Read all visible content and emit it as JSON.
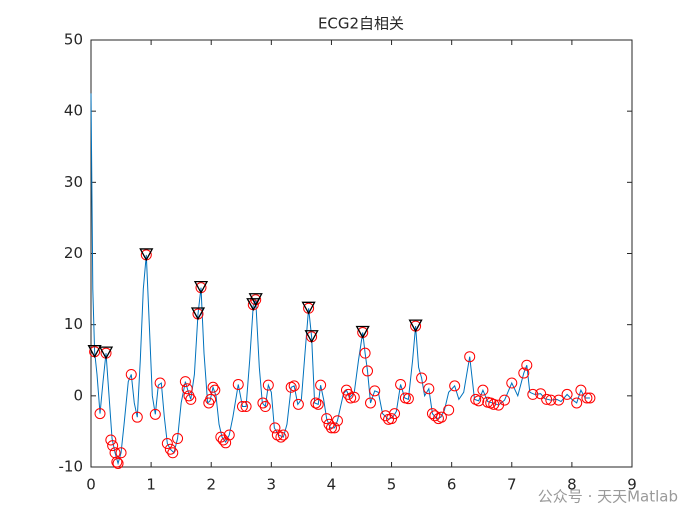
{
  "chart_data": {
    "type": "line",
    "title": "ECG2自相关",
    "xlim": [
      0,
      9
    ],
    "ylim": [
      -10,
      50
    ],
    "xticks": [
      0,
      1,
      2,
      3,
      4,
      5,
      6,
      7,
      8,
      9
    ],
    "yticks": [
      -10,
      0,
      10,
      20,
      30,
      40,
      50
    ],
    "grid": false,
    "series": [
      {
        "color": "#0072bd",
        "marker": "none",
        "x": [
          0,
          0.03,
          0.06,
          0.1,
          0.15,
          0.2,
          0.25,
          0.3,
          0.35,
          0.4,
          0.45,
          0.5,
          0.55,
          0.62,
          0.67,
          0.72,
          0.77,
          0.82,
          0.87,
          0.92,
          0.97,
          1.02,
          1.07,
          1.12,
          1.17,
          1.22,
          1.27,
          1.32,
          1.38,
          1.44,
          1.5,
          1.57,
          1.62,
          1.66,
          1.72,
          1.78,
          1.83,
          1.88,
          1.94,
          1.98,
          2.03,
          2.08,
          2.13,
          2.18,
          2.24,
          2.3,
          2.36,
          2.45,
          2.52,
          2.58,
          2.64,
          2.7,
          2.74,
          2.8,
          2.85,
          2.9,
          2.95,
          3.0,
          3.05,
          3.12,
          3.2,
          3.26,
          3.33,
          3.38,
          3.44,
          3.5,
          3.56,
          3.62,
          3.67,
          3.72,
          3.78,
          3.82,
          3.87,
          3.92,
          3.98,
          4.05,
          4.1,
          4.2,
          4.25,
          4.3,
          4.38,
          4.45,
          4.52,
          4.56,
          4.6,
          4.65,
          4.72,
          4.78,
          4.85,
          4.95,
          5.02,
          5.08,
          5.15,
          5.22,
          5.28,
          5.35,
          5.4,
          5.45,
          5.5,
          5.55,
          5.62,
          5.68,
          5.75,
          5.82,
          5.88,
          5.95,
          6.05,
          6.12,
          6.2,
          6.3,
          6.38,
          6.45,
          6.52,
          6.6,
          6.68,
          6.78,
          6.88,
          7.0,
          7.1,
          7.2,
          7.25,
          7.3,
          7.38,
          7.48,
          7.55,
          7.65,
          7.75,
          7.82,
          7.92,
          8.0,
          8.08,
          8.15,
          8.22,
          8.3
        ],
        "values": [
          42.5,
          15,
          6.2,
          3,
          -2.5,
          2,
          6,
          0,
          -6,
          -8,
          -9.5,
          -8,
          -4,
          2,
          3,
          -1,
          -3,
          5,
          15,
          19.8,
          10,
          0,
          -2.6,
          1.5,
          1.8,
          -3,
          -6.7,
          -7.5,
          -8,
          -6,
          -1,
          2,
          0.5,
          -0.5,
          3,
          11.5,
          15.2,
          6,
          -1,
          -0.7,
          1.2,
          0,
          -4,
          -5.8,
          -6.5,
          -5.5,
          -3,
          1.6,
          -1.5,
          -1.5,
          5,
          12.8,
          13.5,
          4,
          -1,
          -1.5,
          1.5,
          0.5,
          -4.5,
          -5.5,
          -5.8,
          -4,
          1.2,
          1.4,
          -1.2,
          -0.5,
          6,
          12.3,
          8.3,
          -1,
          -1.2,
          1.5,
          -0.5,
          -3.2,
          -4.5,
          -4.5,
          -3.5,
          0.3,
          0.8,
          -0.3,
          0.5,
          5,
          8.9,
          6,
          3.5,
          -1,
          0.7,
          0.5,
          -2.5,
          -3.3,
          -3,
          -2.2,
          1.6,
          -0.3,
          -0.5,
          5,
          9.8,
          4,
          2.5,
          0,
          1,
          -2.5,
          -3.2,
          -3,
          -2,
          0.5,
          1.4,
          -0.5,
          0.5,
          5.5,
          -0.5,
          -0.7,
          0.8,
          -0.8,
          -1,
          -1.3,
          -0.6,
          1.8,
          0,
          3.2,
          4.3,
          0.5,
          0.2,
          0.3,
          -0.4,
          -0.6,
          -0.5,
          -0.8,
          0.2,
          -0.5,
          -1,
          0.8,
          -0.3,
          -0.3
        ]
      },
      {
        "color": "#ff0000",
        "marker": "circle",
        "x": [
          0.06,
          0.15,
          0.25,
          0.33,
          0.36,
          0.4,
          0.43,
          0.45,
          0.5,
          0.67,
          0.77,
          0.92,
          1.07,
          1.15,
          1.27,
          1.32,
          1.36,
          1.44,
          1.57,
          1.6,
          1.63,
          1.66,
          1.78,
          1.83,
          1.96,
          1.99,
          2.03,
          2.06,
          2.16,
          2.2,
          2.24,
          2.3,
          2.45,
          2.52,
          2.58,
          2.7,
          2.74,
          2.86,
          2.9,
          2.95,
          3.06,
          3.1,
          3.16,
          3.2,
          3.33,
          3.38,
          3.45,
          3.62,
          3.67,
          3.74,
          3.78,
          3.82,
          3.92,
          3.96,
          4.0,
          4.05,
          4.1,
          4.25,
          4.28,
          4.32,
          4.38,
          4.52,
          4.56,
          4.6,
          4.65,
          4.72,
          4.9,
          4.95,
          5.0,
          5.05,
          5.15,
          5.23,
          5.28,
          5.4,
          5.5,
          5.62,
          5.68,
          5.72,
          5.78,
          5.83,
          5.95,
          6.05,
          6.3,
          6.4,
          6.45,
          6.52,
          6.6,
          6.65,
          6.7,
          6.78,
          6.88,
          7.0,
          7.2,
          7.25,
          7.35,
          7.48,
          7.58,
          7.65,
          7.78,
          7.92,
          8.08,
          8.15,
          8.25,
          8.3
        ],
        "values": [
          6.2,
          -2.5,
          6,
          -6.2,
          -7,
          -8,
          -9.3,
          -9.5,
          -8,
          3,
          -3,
          19.8,
          -2.6,
          1.8,
          -6.7,
          -7.5,
          -8,
          -6,
          2,
          1,
          0,
          -0.5,
          11.5,
          15.2,
          -1,
          -0.5,
          1.2,
          0.8,
          -5.8,
          -6.2,
          -6.6,
          -5.5,
          1.6,
          -1.5,
          -1.5,
          12.8,
          13.5,
          -1,
          -1.5,
          1.5,
          -4.5,
          -5.5,
          -5.8,
          -5.5,
          1.2,
          1.4,
          -1.2,
          12.3,
          8.3,
          -1,
          -1.2,
          1.5,
          -3.2,
          -4,
          -4.5,
          -4.5,
          -3.5,
          0.8,
          0.2,
          -0.3,
          -0.2,
          8.9,
          6,
          3.5,
          -1,
          0.7,
          -2.8,
          -3.3,
          -3.2,
          -2.5,
          1.6,
          -0.3,
          -0.4,
          9.8,
          2.5,
          1,
          -2.5,
          -2.8,
          -3.2,
          -3,
          -2,
          1.4,
          5.5,
          -0.5,
          -0.7,
          0.8,
          -0.9,
          -1,
          -1.2,
          -1.3,
          -0.6,
          1.8,
          3.2,
          4.3,
          0.2,
          0.3,
          -0.5,
          -0.6,
          -0.6,
          0.2,
          -1,
          0.8,
          -0.3,
          -0.3
        ]
      },
      {
        "color": "#000000",
        "marker": "triangle",
        "x": [
          0.06,
          0.25,
          0.92,
          1.78,
          1.83,
          2.7,
          2.74,
          3.62,
          3.67,
          4.52,
          5.4
        ],
        "values": [
          6.2,
          6,
          19.8,
          11.5,
          15.2,
          12.8,
          13.5,
          12.3,
          8.3,
          8.9,
          9.8
        ]
      }
    ],
    "watermark": "公众号 · 天天Matlab"
  }
}
